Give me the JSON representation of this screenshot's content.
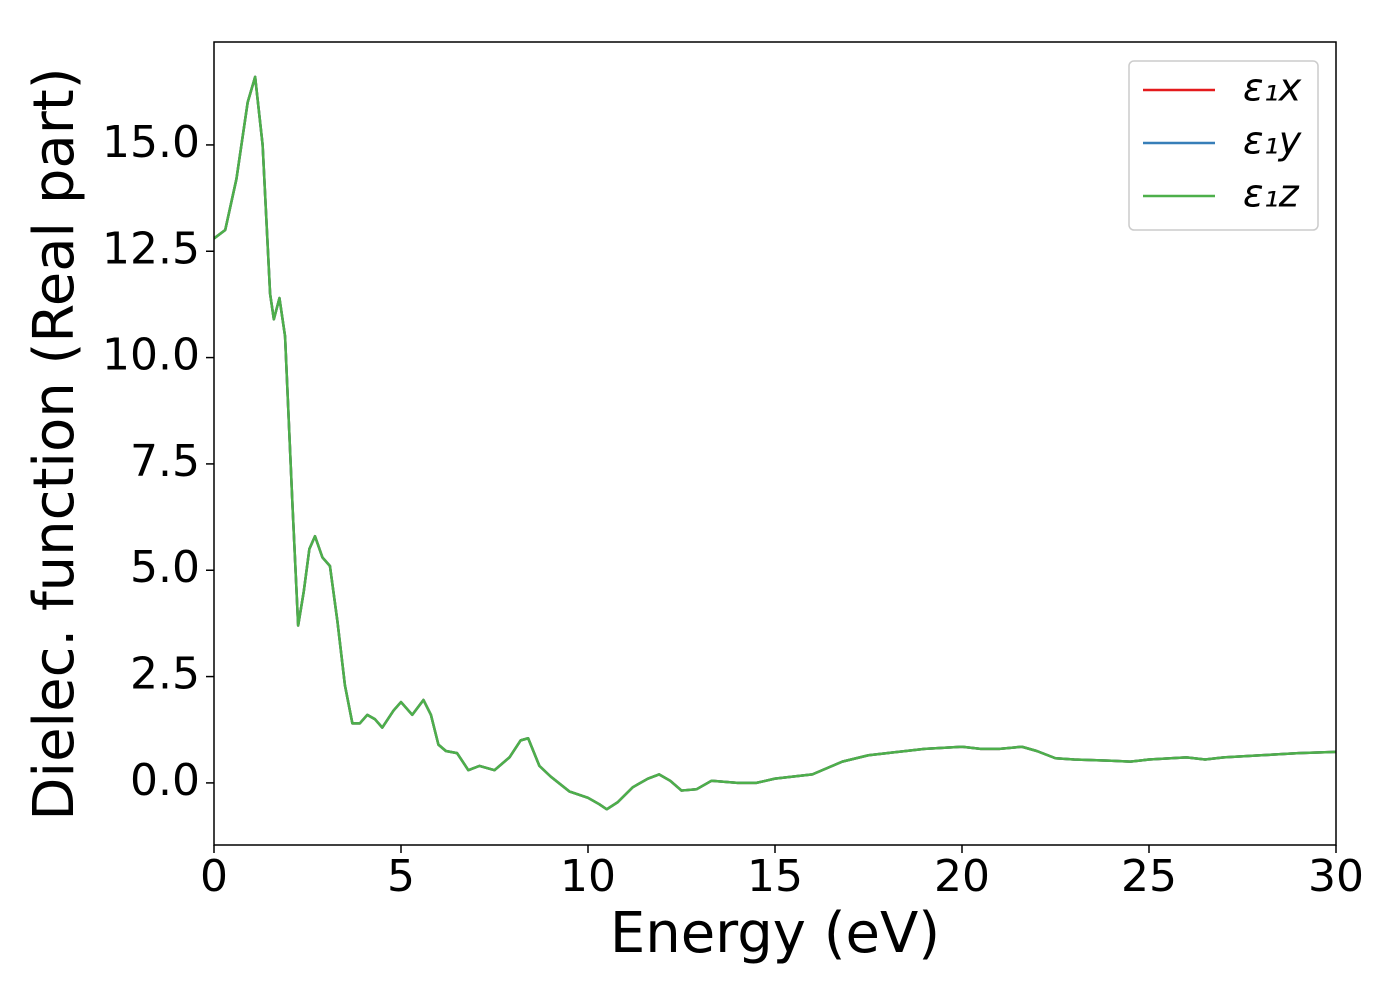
{
  "chart_data": {
    "type": "line",
    "xlabel": "Energy (eV)",
    "ylabel": "Dielec. function (Real part)",
    "x": [
      0,
      0.3,
      0.6,
      0.9,
      1.1,
      1.3,
      1.5,
      1.6,
      1.75,
      1.9,
      2.1,
      2.25,
      2.4,
      2.55,
      2.7,
      2.9,
      3.1,
      3.3,
      3.5,
      3.7,
      3.9,
      4.1,
      4.3,
      4.5,
      4.8,
      5.0,
      5.3,
      5.6,
      5.8,
      6.0,
      6.2,
      6.5,
      6.8,
      7.1,
      7.5,
      7.9,
      8.2,
      8.4,
      8.7,
      9.0,
      9.5,
      10.0,
      10.3,
      10.5,
      10.8,
      11.2,
      11.6,
      11.9,
      12.2,
      12.5,
      12.9,
      13.3,
      14.0,
      14.5,
      15.0,
      15.5,
      16.0,
      16.8,
      17.5,
      18.0,
      18.5,
      19.0,
      20.0,
      20.5,
      21.0,
      21.6,
      22.0,
      22.5,
      23.0,
      24.0,
      24.5,
      25.0,
      26.0,
      26.5,
      27.0,
      28.0,
      29.0,
      30.0
    ],
    "series": [
      {
        "name": "ε₁x",
        "color": "#e41a1c",
        "values": [
          12.8,
          13.0,
          14.2,
          16.0,
          16.6,
          15.0,
          11.5,
          10.9,
          11.4,
          10.5,
          6.5,
          3.7,
          4.5,
          5.5,
          5.8,
          5.3,
          5.1,
          3.8,
          2.3,
          1.4,
          1.4,
          1.6,
          1.5,
          1.3,
          1.7,
          1.9,
          1.6,
          1.95,
          1.6,
          0.9,
          0.75,
          0.7,
          0.3,
          0.4,
          0.3,
          0.6,
          1.0,
          1.05,
          0.4,
          0.15,
          -0.2,
          -0.35,
          -0.5,
          -0.62,
          -0.45,
          -0.1,
          0.1,
          0.2,
          0.05,
          -0.18,
          -0.15,
          0.05,
          0.0,
          0.0,
          0.1,
          0.15,
          0.2,
          0.5,
          0.65,
          0.7,
          0.75,
          0.8,
          0.85,
          0.8,
          0.8,
          0.85,
          0.75,
          0.58,
          0.55,
          0.52,
          0.5,
          0.55,
          0.6,
          0.55,
          0.6,
          0.65,
          0.7,
          0.73
        ]
      },
      {
        "name": "ε₁y",
        "color": "#377eb8",
        "values": [
          12.8,
          13.0,
          14.2,
          16.0,
          16.6,
          15.0,
          11.5,
          10.9,
          11.4,
          10.5,
          6.5,
          3.7,
          4.5,
          5.5,
          5.8,
          5.3,
          5.1,
          3.8,
          2.3,
          1.4,
          1.4,
          1.6,
          1.5,
          1.3,
          1.7,
          1.9,
          1.6,
          1.95,
          1.6,
          0.9,
          0.75,
          0.7,
          0.3,
          0.4,
          0.3,
          0.6,
          1.0,
          1.05,
          0.4,
          0.15,
          -0.2,
          -0.35,
          -0.5,
          -0.62,
          -0.45,
          -0.1,
          0.1,
          0.2,
          0.05,
          -0.18,
          -0.15,
          0.05,
          0.0,
          0.0,
          0.1,
          0.15,
          0.2,
          0.5,
          0.65,
          0.7,
          0.75,
          0.8,
          0.85,
          0.8,
          0.8,
          0.85,
          0.75,
          0.58,
          0.55,
          0.52,
          0.5,
          0.55,
          0.6,
          0.55,
          0.6,
          0.65,
          0.7,
          0.73
        ]
      },
      {
        "name": "ε₁z",
        "color": "#4daf4a",
        "values": [
          12.8,
          13.0,
          14.2,
          16.0,
          16.6,
          15.0,
          11.5,
          10.9,
          11.4,
          10.5,
          6.5,
          3.7,
          4.5,
          5.5,
          5.8,
          5.3,
          5.1,
          3.8,
          2.3,
          1.4,
          1.4,
          1.6,
          1.5,
          1.3,
          1.7,
          1.9,
          1.6,
          1.95,
          1.6,
          0.9,
          0.75,
          0.7,
          0.3,
          0.4,
          0.3,
          0.6,
          1.0,
          1.05,
          0.4,
          0.15,
          -0.2,
          -0.35,
          -0.5,
          -0.62,
          -0.45,
          -0.1,
          0.1,
          0.2,
          0.05,
          -0.18,
          -0.15,
          0.05,
          0.0,
          0.0,
          0.1,
          0.15,
          0.2,
          0.5,
          0.65,
          0.7,
          0.75,
          0.8,
          0.85,
          0.8,
          0.8,
          0.85,
          0.75,
          0.58,
          0.55,
          0.52,
          0.5,
          0.55,
          0.6,
          0.55,
          0.6,
          0.65,
          0.7,
          0.73
        ]
      }
    ],
    "xlim": [
      0,
      30
    ],
    "xticks": [
      0,
      5,
      10,
      15,
      20,
      25,
      30
    ],
    "ylim": [
      -1.46,
      17.42
    ],
    "yticks": [
      {
        "value": 0,
        "label": "0.0"
      },
      2.5,
      {
        "value": 5,
        "label": "5.0"
      },
      7.5,
      {
        "value": 10,
        "label": "10.0"
      },
      12.5,
      {
        "value": 15,
        "label": "15.0"
      }
    ],
    "grid": false,
    "legend": "upper right"
  }
}
